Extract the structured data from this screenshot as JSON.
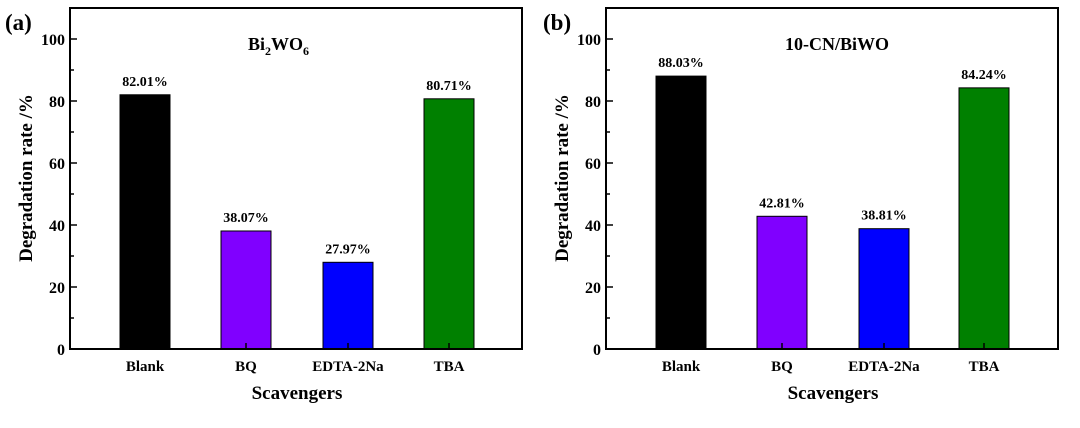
{
  "chart_data": [
    {
      "type": "bar",
      "panel_label": "(a)",
      "title": "Bi2WO6",
      "title_parts": {
        "base1": "Bi",
        "sub1": "2",
        "base2": "WO",
        "sub2": "6"
      },
      "xlabel": "Scavengers",
      "ylabel": "Degradation rate /%",
      "categories": [
        "Blank",
        "BQ",
        "EDTA-2Na",
        "TBA"
      ],
      "values": [
        82.01,
        38.07,
        27.97,
        80.71
      ],
      "data_labels": [
        "82.01%",
        "38.07%",
        "27.97%",
        "80.71%"
      ],
      "colors": [
        "#000000",
        "#8000ff",
        "#0000ff",
        "#008000"
      ],
      "ylim": [
        0,
        110
      ],
      "yticks": [
        0,
        20,
        40,
        60,
        80,
        100
      ]
    },
    {
      "type": "bar",
      "panel_label": "(b)",
      "title": "10-CN/BiWO",
      "xlabel": "Scavengers",
      "ylabel": "Degradation rate /%",
      "categories": [
        "Blank",
        "BQ",
        "EDTA-2Na",
        "TBA"
      ],
      "values": [
        88.03,
        42.81,
        38.81,
        84.24
      ],
      "data_labels": [
        "88.03%",
        "42.81%",
        "38.81%",
        "84.24%"
      ],
      "colors": [
        "#000000",
        "#8000ff",
        "#0000ff",
        "#008000"
      ],
      "ylim": [
        0,
        110
      ],
      "yticks": [
        0,
        20,
        40,
        60,
        80,
        100
      ]
    }
  ]
}
